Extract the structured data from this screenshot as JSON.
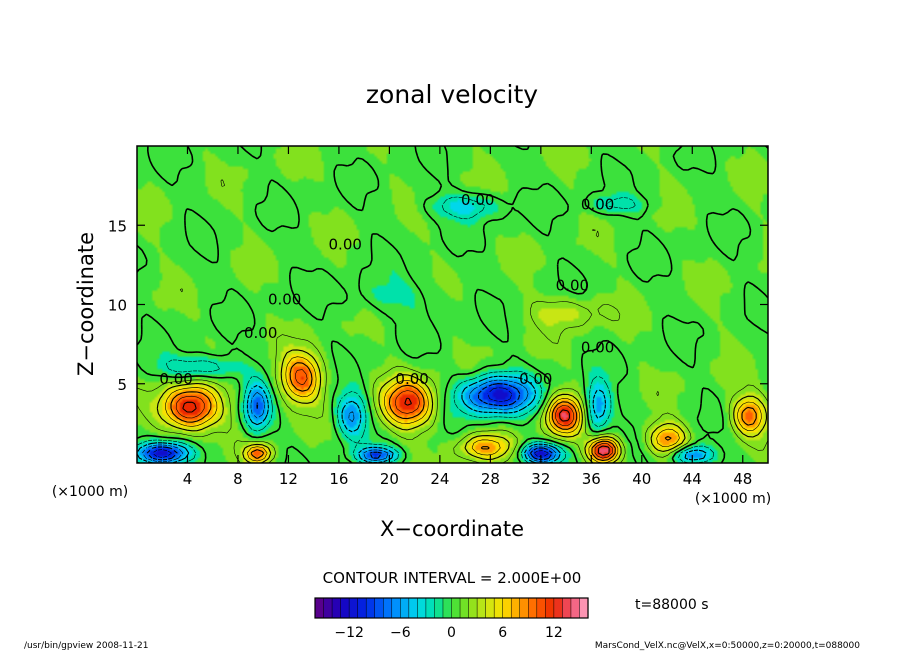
{
  "chart_data": {
    "type": "heatmap",
    "title": "zonal velocity",
    "xlabel": "X−coordinate",
    "ylabel": "Z−coordinate",
    "x_unit": "(×1000 m)",
    "x_unit_right": "(×1000 m)",
    "y_unit": "(×1000 m)",
    "xlim": [
      0,
      50
    ],
    "ylim": [
      0,
      20
    ],
    "x_ticks": [
      4,
      8,
      12,
      16,
      20,
      24,
      28,
      32,
      36,
      40,
      44,
      48
    ],
    "y_ticks": [
      5,
      10,
      15
    ],
    "contour_label": "0.00",
    "contour_labels": [
      {
        "x": 27,
        "z": 16.6
      },
      {
        "x": 36.5,
        "z": 16.3
      },
      {
        "x": 16.5,
        "z": 13.8
      },
      {
        "x": 34.5,
        "z": 11.2
      },
      {
        "x": 11.7,
        "z": 10.3
      },
      {
        "x": 9.8,
        "z": 8.2
      },
      {
        "x": 36.5,
        "z": 7.3
      },
      {
        "x": 21.8,
        "z": 5.3
      },
      {
        "x": 31.6,
        "z": 5.3
      },
      {
        "x": 3.1,
        "z": 5.3
      }
    ],
    "contour_interval_text": "CONTOUR INTERVAL = 2.000E+00",
    "contour_interval": 2.0,
    "colorbar": {
      "min": -16,
      "max": 16,
      "step": 1,
      "ticks": [
        -12,
        -6,
        0,
        6,
        12
      ]
    },
    "features": [
      {
        "x": 4.2,
        "z": 3.5,
        "u": 13,
        "sx": 2.2,
        "sz": 1.4
      },
      {
        "x": 13.0,
        "z": 5.4,
        "u": 10,
        "sx": 1.6,
        "sz": 1.5
      },
      {
        "x": 21.5,
        "z": 3.8,
        "u": 11,
        "sx": 2.0,
        "sz": 1.5
      },
      {
        "x": 33.8,
        "z": 3.0,
        "u": 12,
        "sx": 1.4,
        "sz": 1.2
      },
      {
        "x": 37.0,
        "z": 0.8,
        "u": 14,
        "sx": 1.2,
        "sz": 0.8
      },
      {
        "x": 48.5,
        "z": 3.0,
        "u": 9,
        "sx": 1.3,
        "sz": 1.2
      },
      {
        "x": 9.6,
        "z": 0.6,
        "u": 9,
        "sx": 1.0,
        "sz": 0.6
      },
      {
        "x": 42.0,
        "z": 1.5,
        "u": 8,
        "sx": 1.5,
        "sz": 1.0
      },
      {
        "x": 27.5,
        "z": 1.0,
        "u": 7,
        "sx": 2.0,
        "sz": 0.8
      },
      {
        "x": 28.5,
        "z": 4.3,
        "u": -12,
        "sx": 2.8,
        "sz": 1.2
      },
      {
        "x": 2.0,
        "z": 0.6,
        "u": -13,
        "sx": 2.0,
        "sz": 0.7
      },
      {
        "x": 9.5,
        "z": 3.5,
        "u": -8,
        "sx": 1.0,
        "sz": 1.5
      },
      {
        "x": 17.0,
        "z": 3.0,
        "u": -7,
        "sx": 1.2,
        "sz": 1.4
      },
      {
        "x": 36.5,
        "z": 3.5,
        "u": -7,
        "sx": 1.0,
        "sz": 1.6
      },
      {
        "x": 32.0,
        "z": 0.6,
        "u": -12,
        "sx": 1.5,
        "sz": 0.6
      },
      {
        "x": 19.0,
        "z": 0.5,
        "u": -9,
        "sx": 1.5,
        "sz": 0.5
      },
      {
        "x": 44.0,
        "z": 0.5,
        "u": -8,
        "sx": 1.6,
        "sz": 0.6
      },
      {
        "x": 5.0,
        "z": 6.0,
        "u": -5,
        "sx": 3.0,
        "sz": 0.8
      },
      {
        "x": 26.0,
        "z": 16.2,
        "u": -4,
        "sx": 3.0,
        "sz": 0.8
      },
      {
        "x": 38.0,
        "z": 16.3,
        "u": -3,
        "sx": 2.5,
        "sz": 0.6
      },
      {
        "x": 34.0,
        "z": 9.5,
        "u": 3,
        "sx": 3.0,
        "sz": 1.0
      },
      {
        "x": 20.0,
        "z": 10.5,
        "u": -2,
        "sx": 4.0,
        "sz": 1.2
      }
    ]
  },
  "time_label": "t=88000 s",
  "footer": {
    "left": "/usr/bin/gpview   2008-11-21",
    "right": "MarsCond_VelX.nc@VelX,x=0:50000,z=0:20000,t=088000"
  },
  "colors": {
    "frame": "#000000",
    "background": "#ffffff"
  }
}
